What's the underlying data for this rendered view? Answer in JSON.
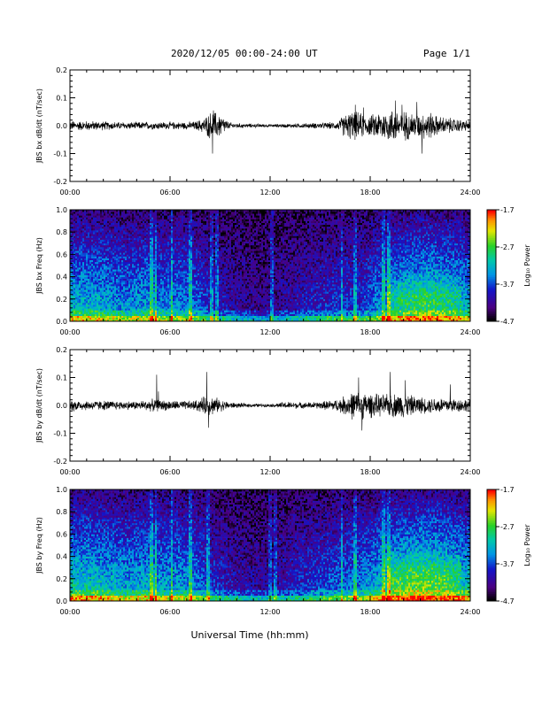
{
  "header": {
    "title": "2020/12/05  00:00-24:00 UT",
    "page": "Page 1/1"
  },
  "footer": {
    "xlabel": "Universal Time (hh:mm)"
  },
  "chart_data": [
    {
      "type": "line",
      "ylabel": "JBS bx dB/dt (nT/sec)",
      "ylim": [
        -0.2,
        0.2
      ],
      "yticks": [
        "-0.2",
        "-0.1",
        "0.0",
        "0.1",
        "0.2"
      ],
      "xlim": [
        0,
        24
      ],
      "xticks": [
        "00:00",
        "06:00",
        "12:00",
        "18:00",
        "24:00"
      ],
      "series": [
        {
          "x": [
            0,
            1,
            2,
            3,
            4,
            5,
            6,
            7,
            7.5,
            8,
            8.5,
            9,
            9.5,
            10,
            11,
            12,
            13,
            14,
            15,
            16,
            16.5,
            17,
            17.5,
            18,
            18.5,
            19,
            19.5,
            20,
            20.5,
            21,
            21.5,
            22,
            23,
            24
          ],
          "amp": [
            0.02,
            0.02,
            0.018,
            0.015,
            0.015,
            0.016,
            0.015,
            0.015,
            0.018,
            0.03,
            0.06,
            0.05,
            0.015,
            0.01,
            0.008,
            0.006,
            0.008,
            0.01,
            0.012,
            0.015,
            0.05,
            0.06,
            0.05,
            0.04,
            0.06,
            0.065,
            0.07,
            0.06,
            0.055,
            0.05,
            0.06,
            0.04,
            0.03,
            0.02
          ],
          "spikes": [
            [
              8.55,
              -0.1
            ],
            [
              8.6,
              0.055
            ],
            [
              17.1,
              0.075
            ],
            [
              17.6,
              0.065
            ],
            [
              19.5,
              0.09
            ],
            [
              19.9,
              0.075
            ],
            [
              21.1,
              -0.1
            ],
            [
              20.8,
              0.085
            ]
          ]
        }
      ]
    },
    {
      "type": "heatmap",
      "ylabel": "JBS bx Freq (Hz)",
      "ylim": [
        0,
        1.0
      ],
      "yticks": [
        "0.0",
        "0.2",
        "0.4",
        "0.6",
        "0.8",
        "1.0"
      ],
      "xlim": [
        0,
        24
      ],
      "xticks": [
        "00:00",
        "06:00",
        "12:00",
        "18:00",
        "24:00"
      ],
      "colorbar": {
        "label": "Log₁₀ Power",
        "ticks": [
          "-1.7",
          "-2.7",
          "-3.7",
          "-4.7"
        ],
        "range": [
          -4.7,
          -1.7
        ]
      },
      "activity_hours": [
        0.55,
        0.55,
        0.5,
        0.45,
        0.5,
        0.45,
        0.45,
        0.4,
        0.25,
        0.2,
        0.15,
        0.12,
        0.15,
        0.2,
        0.25,
        0.28,
        0.3,
        0.3,
        0.45,
        0.55,
        0.62,
        0.65,
        0.6,
        0.55
      ],
      "streaks": [
        4.9,
        5.15,
        6.1,
        7.2,
        8.5,
        8.8,
        12.1,
        16.3,
        17.1,
        18.8,
        19.1
      ]
    },
    {
      "type": "line",
      "ylabel": "JBS by dB/dt (nT/sec)",
      "ylim": [
        -0.2,
        0.2
      ],
      "yticks": [
        "-0.2",
        "-0.1",
        "0.0",
        "0.1",
        "0.2"
      ],
      "xlim": [
        0,
        24
      ],
      "xticks": [
        "00:00",
        "06:00",
        "12:00",
        "18:00",
        "24:00"
      ],
      "series": [
        {
          "x": [
            0,
            1,
            2,
            3,
            4,
            5,
            6,
            7,
            7.5,
            8,
            8.5,
            9,
            9.5,
            10,
            11,
            12,
            13,
            14,
            15,
            16,
            16.5,
            17,
            17.5,
            18,
            18.5,
            19,
            19.5,
            20,
            20.5,
            21,
            21.5,
            22,
            23,
            24
          ],
          "amp": [
            0.025,
            0.02,
            0.02,
            0.018,
            0.018,
            0.025,
            0.02,
            0.018,
            0.02,
            0.035,
            0.04,
            0.025,
            0.015,
            0.01,
            0.008,
            0.006,
            0.015,
            0.012,
            0.015,
            0.025,
            0.04,
            0.06,
            0.055,
            0.05,
            0.045,
            0.045,
            0.05,
            0.05,
            0.04,
            0.035,
            0.03,
            0.035,
            0.03,
            0.025
          ],
          "spikes": [
            [
              5.2,
              0.11
            ],
            [
              5.3,
              0.05
            ],
            [
              8.2,
              0.12
            ],
            [
              8.3,
              -0.08
            ],
            [
              17.3,
              0.1
            ],
            [
              17.5,
              -0.09
            ],
            [
              19.2,
              0.12
            ],
            [
              20.1,
              0.09
            ],
            [
              22.8,
              0.075
            ]
          ]
        }
      ]
    },
    {
      "type": "heatmap",
      "ylabel": "JBS by Freq (Hz)",
      "ylim": [
        0,
        1.0
      ],
      "yticks": [
        "0.0",
        "0.2",
        "0.4",
        "0.6",
        "0.8",
        "1.0"
      ],
      "xlim": [
        0,
        24
      ],
      "xticks": [
        "00:00",
        "06:00",
        "12:00",
        "18:00",
        "24:00"
      ],
      "colorbar": {
        "label": "Log₁₀ Power",
        "ticks": [
          "-1.7",
          "-2.7",
          "-3.7",
          "-4.7"
        ],
        "range": [
          -4.7,
          -1.7
        ]
      },
      "activity_hours": [
        0.6,
        0.6,
        0.55,
        0.5,
        0.55,
        0.5,
        0.5,
        0.45,
        0.3,
        0.22,
        0.18,
        0.15,
        0.18,
        0.25,
        0.3,
        0.35,
        0.4,
        0.45,
        0.55,
        0.65,
        0.72,
        0.72,
        0.68,
        0.6
      ],
      "streaks": [
        4.9,
        5.15,
        6.1,
        7.2,
        8.3,
        12.0,
        12.3,
        16.3,
        17.1,
        18.8,
        19.1
      ]
    }
  ]
}
